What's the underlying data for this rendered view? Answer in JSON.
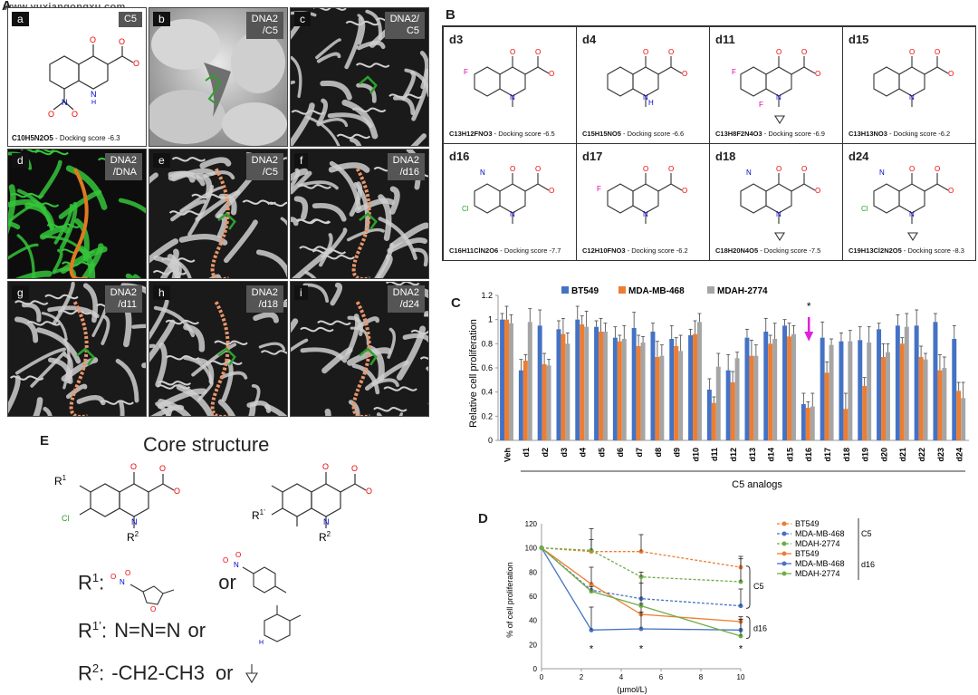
{
  "watermark": "www.yuxiangongxu.com",
  "panels": {
    "A": "A",
    "B": "B",
    "C": "C",
    "D": "D",
    "E": "E"
  },
  "panelA": {
    "tiles": [
      {
        "letter": "a",
        "tag": "C5",
        "formula": "C10H5N2O5",
        "score_text": " - Docking score -6.3"
      },
      {
        "letter": "b",
        "tag": "DNA2\n/C5"
      },
      {
        "letter": "c",
        "tag": "DNA2/\nC5"
      },
      {
        "letter": "d",
        "tag": "DNA2\n/DNA"
      },
      {
        "letter": "e",
        "tag": "DNA2\n/C5"
      },
      {
        "letter": "f",
        "tag": "DNA2\n/d16"
      },
      {
        "letter": "g",
        "tag": "DNA2\n/d11"
      },
      {
        "letter": "h",
        "tag": "DNA2\n/d18"
      },
      {
        "letter": "i",
        "tag": "DNA2\n/d24"
      }
    ]
  },
  "panelB": {
    "cells": [
      {
        "id": "d3",
        "formula": "C13H12FNO3",
        "score_text": " - Docking score -6.5"
      },
      {
        "id": "d4",
        "formula": "C15H15NO5",
        "score_text": " - Docking score -6.6"
      },
      {
        "id": "d11",
        "formula": "C13H8F2N4O3",
        "score_text": " - Docking score -6.9"
      },
      {
        "id": "d15",
        "formula": "C13H13NO3",
        "score_text": " - Docking score -6.2"
      },
      {
        "id": "d16",
        "formula": "C16H11ClN2O6",
        "score_text": " - Docking score -7.7"
      },
      {
        "id": "d17",
        "formula": "C12H10FNO3",
        "score_text": " - Docking score -6.2"
      },
      {
        "id": "d18",
        "formula": "C18H20N4O5",
        "score_text": " - Docking score -7.5"
      },
      {
        "id": "d24",
        "formula": "C19H13Cl2N2O5",
        "score_text": " - Docking score -8.3"
      }
    ],
    "atom_labels": {
      "O": "O",
      "N": "N",
      "NH": "N",
      "H": "H",
      "F": "F",
      "Cl": "Cl",
      "OH": "O",
      "HH": "H",
      "Om": "O",
      "Np": "N",
      "Nm": "N"
    }
  },
  "chart_data": [
    {
      "type": "bar",
      "ylabel": "Relative cell proliferation",
      "xlabel": "C5 analogs",
      "ylim": [
        0,
        1.2
      ],
      "yticks": [
        "0",
        "0.2",
        "0.4",
        "0.6",
        "0.8",
        "1",
        "1.2"
      ],
      "categories": [
        "Veh",
        "d1",
        "d2",
        "d3",
        "d4",
        "d5",
        "d6",
        "d7",
        "d8",
        "d9",
        "d10",
        "d11",
        "d12",
        "d13",
        "d14",
        "d15",
        "d16",
        "d17",
        "d18",
        "d19",
        "d20",
        "d21",
        "d22",
        "d23",
        "d24"
      ],
      "series": [
        {
          "name": "BT549",
          "color": "#4472C4",
          "values": [
            1.0,
            0.58,
            0.95,
            0.92,
            1.0,
            0.94,
            0.85,
            0.93,
            0.9,
            0.84,
            0.87,
            0.42,
            0.58,
            0.85,
            0.9,
            0.95,
            0.3,
            0.85,
            0.82,
            0.83,
            0.92,
            0.95,
            0.95,
            0.98,
            0.84
          ]
        },
        {
          "name": "MDA-MB-468",
          "color": "#ED7D31",
          "values": [
            1.0,
            0.66,
            0.63,
            0.88,
            0.96,
            0.9,
            0.82,
            0.78,
            0.69,
            0.78,
            0.88,
            0.31,
            0.48,
            0.7,
            0.8,
            0.86,
            0.27,
            0.56,
            0.26,
            0.45,
            0.69,
            0.8,
            0.69,
            0.58,
            0.41
          ]
        },
        {
          "name": "MDAH-2774",
          "color": "#A5A5A5",
          "values": [
            0.97,
            0.98,
            0.62,
            0.8,
            0.94,
            0.9,
            0.84,
            0.81,
            0.7,
            0.74,
            0.98,
            0.61,
            0.68,
            0.7,
            0.84,
            0.88,
            0.28,
            0.79,
            0.82,
            0.81,
            0.73,
            0.94,
            0.67,
            0.6,
            0.35
          ]
        }
      ],
      "annotation": "*"
    },
    {
      "type": "line",
      "ylabel": "% of cell proliferation",
      "xlabel": "(µmol/L)",
      "xlim": [
        0,
        10
      ],
      "ylim": [
        0,
        120
      ],
      "xticks": [
        "0",
        "2",
        "4",
        "6",
        "8",
        "10"
      ],
      "yticks": [
        "0",
        "20",
        "40",
        "60",
        "80",
        "100",
        "120"
      ],
      "x": [
        0,
        2.5,
        5,
        10
      ],
      "series": [
        {
          "name": "BT549",
          "group": "C5",
          "dashed": true,
          "color": "#ED7D31",
          "values": [
            100,
            97,
            97,
            84
          ]
        },
        {
          "name": "MDA-MB-468",
          "group": "C5",
          "dashed": true,
          "color": "#4472C4",
          "values": [
            100,
            65,
            58,
            52
          ]
        },
        {
          "name": "MDAH-2774",
          "group": "C5",
          "dashed": true,
          "color": "#70AD47",
          "values": [
            100,
            98,
            76,
            72
          ]
        },
        {
          "name": "BT549",
          "group": "d16",
          "dashed": false,
          "color": "#ED7D31",
          "values": [
            100,
            70,
            45,
            39
          ]
        },
        {
          "name": "MDA-MB-468",
          "group": "d16",
          "dashed": false,
          "color": "#4472C4",
          "values": [
            100,
            32,
            33,
            32
          ]
        },
        {
          "name": "MDAH-2774",
          "group": "d16",
          "dashed": false,
          "color": "#70AD47",
          "values": [
            100,
            64,
            52,
            27
          ]
        }
      ],
      "bracket_labels": [
        "C5",
        "d16"
      ],
      "legend_groups": [
        "C5",
        "d16"
      ],
      "star": "*"
    }
  ],
  "panelE": {
    "title": "Core structure",
    "r1_label": "R",
    "r1_sup": "1",
    "r1_suffix": ":",
    "r1_or": "or",
    "r1p_label": "R",
    "r1p_sup": "1’",
    "r1p_suffix": ":",
    "r1p_value": "N=N=N",
    "r1p_or": "or",
    "r2_label": "R",
    "r2_sup": "2",
    "r2_suffix": ":",
    "r2_value": "-CH2-CH3",
    "r2_or": "or",
    "core_sub": {
      "R1": "R",
      "R1sup": "1",
      "R1p": "R",
      "R1psup": "1’",
      "R2": "R",
      "R2sup": "2",
      "O": "O",
      "N": "N",
      "Cl": "Cl",
      "Om": "O",
      "Np": "N",
      "Nh": "H",
      "NN": "N"
    }
  }
}
